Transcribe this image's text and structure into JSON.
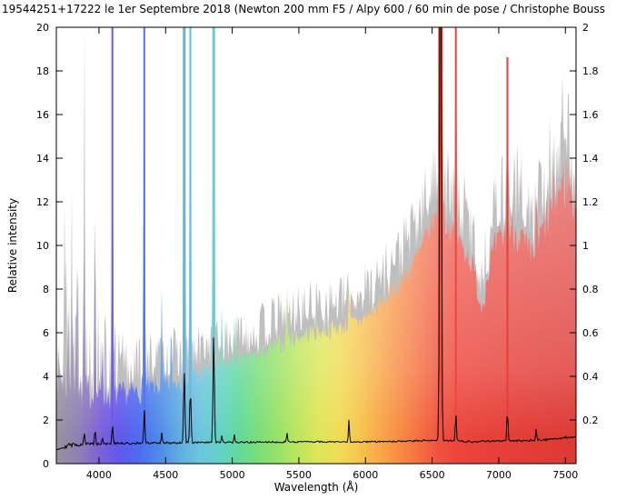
{
  "chart_data": {
    "type": "area",
    "title": "19544251+17222  le 1er Septembre 2018 (Newton 200 mm F5 / Alpy 600 / 60 min de pose / Christophe Bouss",
    "xlabel": "Wavelength (Å)",
    "ylabel": "Relative intensity",
    "x_range": [
      3680,
      7580
    ],
    "y_range": [
      0,
      20
    ],
    "y_right_range": [
      0,
      2
    ],
    "x_ticks": [
      4000,
      4500,
      5000,
      5500,
      6000,
      6500,
      7000,
      7500
    ],
    "y_left_ticks": [
      0,
      2,
      4,
      6,
      8,
      10,
      12,
      14,
      16,
      18,
      20
    ],
    "y_right_ticks": [
      0.2,
      0.4,
      0.6,
      0.8,
      1,
      1.2,
      1.4,
      1.6,
      1.8,
      2
    ],
    "grid": false,
    "legend": "none",
    "colors": {
      "background": "#ffffff",
      "axis": "#000000",
      "gray_fill": "#bfbfbf",
      "black_line": "#000000"
    },
    "rainbow_stops": [
      [
        3680,
        "#97939f"
      ],
      [
        3850,
        "#8f7fb4"
      ],
      [
        4000,
        "#7e62d8"
      ],
      [
        4150,
        "#6159ec"
      ],
      [
        4300,
        "#4d6cf0"
      ],
      [
        4450,
        "#4f8ae8"
      ],
      [
        4600,
        "#60ace0"
      ],
      [
        4750,
        "#6cc4de"
      ],
      [
        4900,
        "#63d2c8"
      ],
      [
        5050,
        "#61d99b"
      ],
      [
        5200,
        "#7ade76"
      ],
      [
        5350,
        "#9ae266"
      ],
      [
        5500,
        "#bfe55c"
      ],
      [
        5650,
        "#dde658"
      ],
      [
        5800,
        "#f0dd54"
      ],
      [
        5950,
        "#f6c64e"
      ],
      [
        6100,
        "#f8a948"
      ],
      [
        6250,
        "#f78c44"
      ],
      [
        6400,
        "#f46f41"
      ],
      [
        6550,
        "#ef523d"
      ],
      [
        6700,
        "#ec453b"
      ],
      [
        6900,
        "#e84139"
      ],
      [
        7200,
        "#e33d37"
      ],
      [
        7580,
        "#dd3a35"
      ]
    ],
    "continuum": [
      [
        3700,
        4.0
      ],
      [
        3800,
        3.6
      ],
      [
        3900,
        3.2
      ],
      [
        4000,
        3.1
      ],
      [
        4100,
        3.1
      ],
      [
        4200,
        3.2
      ],
      [
        4300,
        3.3
      ],
      [
        4400,
        3.5
      ],
      [
        4500,
        3.6
      ],
      [
        4600,
        3.8
      ],
      [
        4700,
        4.0
      ],
      [
        4800,
        4.2
      ],
      [
        4900,
        4.4
      ],
      [
        5000,
        4.6
      ],
      [
        5100,
        4.8
      ],
      [
        5200,
        5.0
      ],
      [
        5300,
        5.3
      ],
      [
        5400,
        5.6
      ],
      [
        5500,
        5.8
      ],
      [
        5600,
        6.0
      ],
      [
        5700,
        6.1
      ],
      [
        5800,
        6.2
      ],
      [
        5900,
        6.4
      ],
      [
        6000,
        6.7
      ],
      [
        6100,
        7.2
      ],
      [
        6200,
        7.8
      ],
      [
        6300,
        8.6
      ],
      [
        6400,
        9.6
      ],
      [
        6500,
        11.0
      ],
      [
        6563,
        11.5
      ],
      [
        6650,
        10.5
      ],
      [
        6750,
        9.8
      ],
      [
        6870,
        8.2
      ],
      [
        6950,
        9.6
      ],
      [
        7050,
        10.6
      ],
      [
        7150,
        10.8
      ],
      [
        7250,
        10.2
      ],
      [
        7350,
        11.0
      ],
      [
        7450,
        12.5
      ],
      [
        7580,
        13.5
      ]
    ],
    "noise_amp": [
      [
        3700,
        0.3
      ],
      [
        4000,
        0.22
      ],
      [
        4500,
        0.15
      ],
      [
        5000,
        0.1
      ],
      [
        5500,
        0.08
      ],
      [
        6000,
        0.07
      ],
      [
        6500,
        0.06
      ],
      [
        6900,
        0.08
      ],
      [
        7300,
        0.1
      ],
      [
        7580,
        0.12
      ]
    ],
    "absorption_bands": [
      [
        6872,
        0.12,
        30
      ],
      [
        7240,
        0.08,
        55
      ],
      [
        7590,
        0.15,
        30
      ]
    ],
    "emission_lines": [
      [
        3770,
        3.5,
        4,
        0,
        0
      ],
      [
        3798,
        5,
        4,
        0,
        0
      ],
      [
        3835,
        7,
        4,
        0,
        0
      ],
      [
        3889,
        9,
        4,
        0,
        0
      ],
      [
        3970,
        8,
        4,
        0,
        0
      ],
      [
        4026,
        3,
        4,
        0,
        0
      ],
      [
        4101,
        18,
        4,
        1,
        2
      ],
      [
        4340,
        24,
        4,
        1,
        2
      ],
      [
        4471,
        4,
        4,
        0,
        0
      ],
      [
        4542,
        2.5,
        4,
        0,
        0
      ],
      [
        4640,
        28,
        5,
        1,
        3
      ],
      [
        4686,
        26,
        4,
        1,
        2
      ],
      [
        4861,
        28,
        5,
        1,
        3
      ],
      [
        4922,
        2.5,
        4,
        0,
        0
      ],
      [
        5016,
        2.5,
        4,
        0,
        0
      ],
      [
        5411,
        2.5,
        4,
        0,
        0
      ],
      [
        5876,
        2.0,
        4,
        0,
        0
      ],
      [
        6563,
        38,
        8,
        1,
        5
      ],
      [
        6678,
        13,
        4,
        1,
        2
      ],
      [
        7065,
        8,
        4,
        1,
        2
      ],
      [
        7281,
        2.5,
        4,
        0,
        0
      ]
    ],
    "gray": {
      "scale": 1.1,
      "offset": 0.6,
      "noise_scale": 1.7,
      "left_boost": [
        [
          3700,
          1.6
        ],
        [
          3900,
          1.0
        ],
        [
          4050,
          0.35
        ],
        [
          4300,
          0.12
        ],
        [
          4800,
          0.05
        ],
        [
          7580,
          0.05
        ]
      ]
    },
    "gray_lines": [
      [
        3770,
        5
      ],
      [
        3798,
        7
      ],
      [
        3835,
        10
      ],
      [
        3889,
        13
      ],
      [
        3970,
        12
      ],
      [
        4026,
        4
      ]
    ],
    "black_spectrum": {
      "continuum": [
        [
          3700,
          0.7
        ],
        [
          3780,
          0.85
        ],
        [
          3900,
          0.9
        ],
        [
          4100,
          0.92
        ],
        [
          4500,
          0.95
        ],
        [
          5000,
          0.97
        ],
        [
          5500,
          1.0
        ],
        [
          6000,
          1.0
        ],
        [
          6300,
          1.02
        ],
        [
          6500,
          1.08
        ],
        [
          6650,
          1.05
        ],
        [
          6800,
          1.0
        ],
        [
          7000,
          1.05
        ],
        [
          7200,
          1.05
        ],
        [
          7400,
          1.12
        ],
        [
          7580,
          1.25
        ]
      ],
      "noise_amp": [
        [
          3700,
          0.12
        ],
        [
          4000,
          0.07
        ],
        [
          4500,
          0.05
        ],
        [
          5000,
          0.04
        ],
        [
          6000,
          0.03
        ],
        [
          7000,
          0.04
        ],
        [
          7580,
          0.05
        ]
      ],
      "lines": [
        [
          3889,
          0.6,
          4
        ],
        [
          3970,
          0.7,
          4
        ],
        [
          4026,
          0.3,
          4
        ],
        [
          4101,
          0.9,
          4
        ],
        [
          4340,
          1.6,
          4
        ],
        [
          4471,
          0.5,
          4
        ],
        [
          4640,
          3.3,
          5
        ],
        [
          4686,
          2.5,
          5
        ],
        [
          4861,
          5.0,
          5
        ],
        [
          4922,
          0.3,
          4
        ],
        [
          5016,
          0.4,
          4
        ],
        [
          5411,
          0.4,
          4
        ],
        [
          5876,
          1.0,
          4
        ],
        [
          6563,
          30,
          6
        ],
        [
          6678,
          1.3,
          4
        ],
        [
          7065,
          1.5,
          4
        ],
        [
          7281,
          0.5,
          4
        ]
      ]
    }
  }
}
